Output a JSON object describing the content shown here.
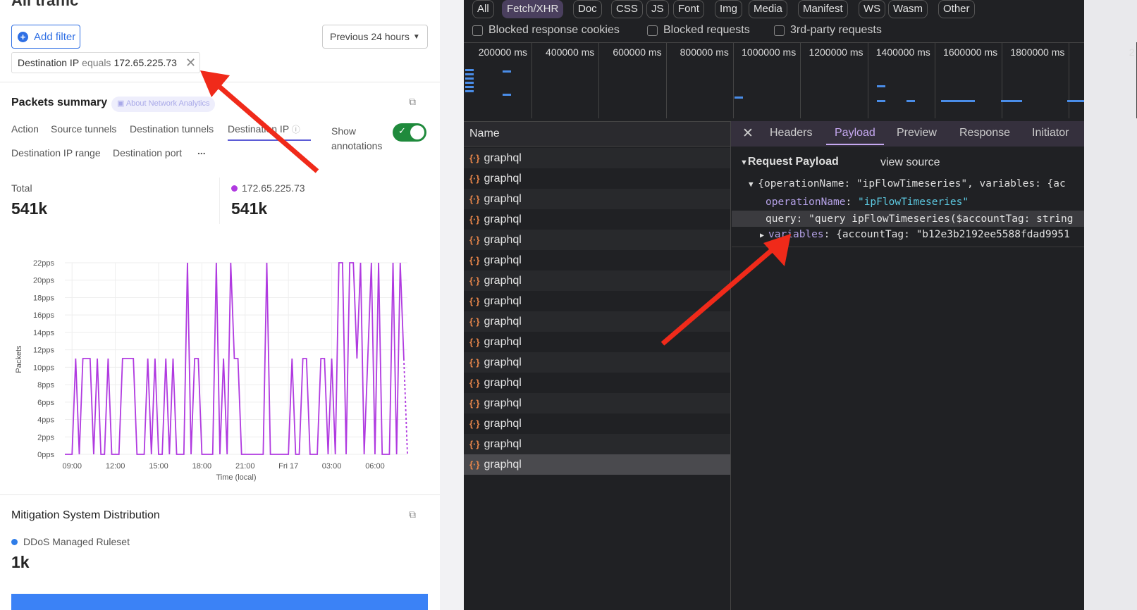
{
  "left": {
    "page_title": "All traffic",
    "add_filter": "Add filter",
    "time_range": "Previous 24 hours",
    "filter_chip": {
      "field": "Destination IP",
      "op": "equals",
      "value": "172.65.225.73"
    },
    "packets_summary": {
      "title": "Packets summary",
      "about_link": "About Network Analytics",
      "tabs": [
        "Action",
        "Source tunnels",
        "Destination tunnels",
        "Destination IP",
        "Destination IP range",
        "Destination port"
      ],
      "active_tab": "Destination IP",
      "more": "...",
      "show_annotations": "Show annotations",
      "annotations_on": true,
      "total_label": "Total",
      "total_value": "541k",
      "series_label": "172.65.225.73",
      "series_value": "541k",
      "series_color": "#b03ae0"
    },
    "mitigation": {
      "title": "Mitigation System Distribution",
      "legend": "DDoS Managed Ruleset",
      "legend_color": "#2f7de8",
      "value": "1k",
      "bar_color": "#3b82f6"
    }
  },
  "chart_data": {
    "type": "line",
    "xlabel": "Time (local)",
    "ylabel": "Packets",
    "yticks": [
      "0pps",
      "2pps",
      "4pps",
      "6pps",
      "8pps",
      "10pps",
      "12pps",
      "14pps",
      "16pps",
      "18pps",
      "20pps",
      "22pps"
    ],
    "ylim": [
      0,
      22
    ],
    "xticks": [
      "09:00",
      "12:00",
      "15:00",
      "18:00",
      "21:00",
      "Fri 17",
      "03:00",
      "06:00"
    ],
    "grid": true,
    "series": [
      {
        "color": "#b03ae0",
        "x": [
          "08:30",
          "08:45",
          "09:00",
          "09:15",
          "09:30",
          "09:45",
          "10:00",
          "10:15",
          "10:30",
          "10:45",
          "11:00",
          "11:15",
          "11:30",
          "11:45",
          "12:00",
          "12:15",
          "12:30",
          "12:45",
          "13:00",
          "13:15",
          "13:30",
          "13:45",
          "14:00",
          "14:15",
          "14:30",
          "14:45",
          "15:00",
          "15:15",
          "15:30",
          "15:45",
          "16:00",
          "16:15",
          "16:30",
          "16:45",
          "17:00",
          "17:15",
          "17:30",
          "17:45",
          "18:00",
          "18:15",
          "18:30",
          "18:45",
          "19:00",
          "19:15",
          "19:30",
          "19:45",
          "20:00",
          "20:15",
          "20:30",
          "20:45",
          "21:00",
          "21:15",
          "21:30",
          "21:45",
          "22:00",
          "22:15",
          "22:30",
          "22:45",
          "23:00",
          "23:15",
          "23:30",
          "23:45",
          "00:00",
          "00:15",
          "00:30",
          "00:45",
          "01:00",
          "01:15",
          "01:30",
          "01:45",
          "02:00",
          "02:15",
          "02:30",
          "02:45",
          "03:00",
          "03:15",
          "03:30",
          "03:45",
          "04:00",
          "04:15",
          "04:30",
          "04:45",
          "05:00",
          "05:15",
          "05:30",
          "05:45",
          "06:00",
          "06:15",
          "06:30",
          "06:45",
          "07:00",
          "07:15",
          "07:30",
          "07:45",
          "08:00",
          "08:15"
        ],
        "values": [
          0,
          0,
          0,
          11,
          0,
          11,
          11,
          11,
          0,
          11,
          0,
          0,
          11,
          0,
          0,
          0,
          11,
          11,
          11,
          11,
          0,
          0,
          0,
          11,
          0,
          11,
          0,
          0,
          11,
          0,
          11,
          0,
          0,
          0,
          22,
          0,
          11,
          11,
          0,
          0,
          0,
          0,
          22,
          0,
          11,
          0,
          22,
          11,
          11,
          0,
          0,
          0,
          0,
          0,
          0,
          0,
          22,
          0,
          0,
          0,
          0,
          0,
          0,
          11,
          0,
          0,
          11,
          11,
          0,
          0,
          0,
          11,
          11,
          0,
          11,
          0,
          22,
          22,
          0,
          22,
          22,
          11,
          22,
          0,
          11,
          22,
          0,
          22,
          0,
          0,
          0,
          22,
          0,
          22,
          11,
          0
        ]
      }
    ]
  },
  "devtools": {
    "filters": [
      "All",
      "Fetch/XHR",
      "Doc",
      "CSS",
      "JS",
      "Font",
      "Img",
      "Media",
      "Manifest",
      "WS",
      "Wasm",
      "Other"
    ],
    "active_filter": "Fetch/XHR",
    "checkboxes": [
      "Blocked response cookies",
      "Blocked requests",
      "3rd-party requests"
    ],
    "timeline_ticks": [
      "200000 ms",
      "400000 ms",
      "600000 ms",
      "800000 ms",
      "1000000 ms",
      "1200000 ms",
      "1400000 ms",
      "1600000 ms",
      "1800000 ms",
      "2"
    ],
    "name_header": "Name",
    "requests": [
      "graphql",
      "graphql",
      "graphql",
      "graphql",
      "graphql",
      "graphql",
      "graphql",
      "graphql",
      "graphql",
      "graphql",
      "graphql",
      "graphql",
      "graphql",
      "graphql",
      "graphql",
      "graphql"
    ],
    "detail_tabs": [
      "Headers",
      "Payload",
      "Preview",
      "Response",
      "Initiator"
    ],
    "active_detail_tab": "Payload",
    "payload": {
      "section": "Request Payload",
      "view_source": "view source",
      "summary": "{operationName: \"ipFlowTimeseries\", variables: {ac",
      "op_key": "operationName",
      "op_value": "\"ipFlowTimeseries\"",
      "query_line": "query: \"query ipFlowTimeseries($accountTag: string",
      "vars_key": "variables",
      "vars_value": ": {accountTag: \"b12e3b2192ee5588fdad9951"
    }
  }
}
